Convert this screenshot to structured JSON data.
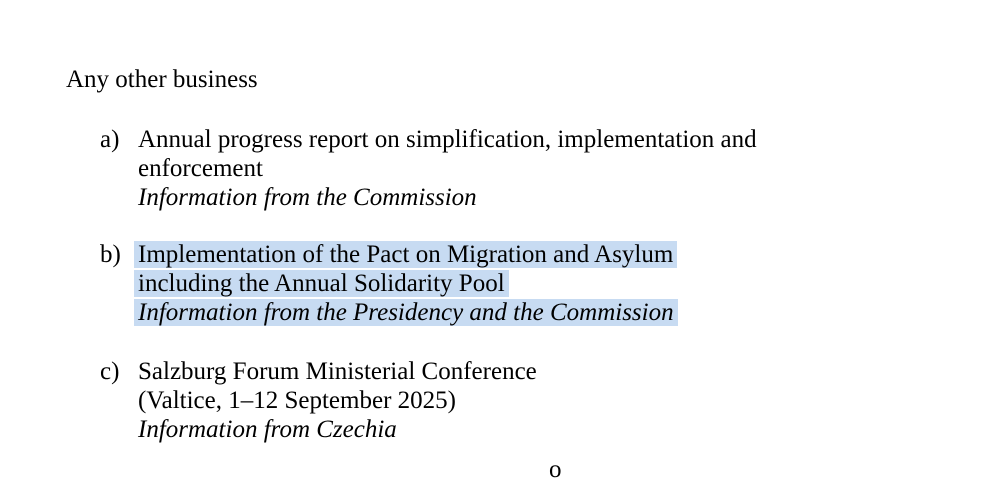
{
  "document": {
    "background_color": "#ffffff",
    "text_color": "#000000",
    "selection_color": "#c7dbf2",
    "heading": "Any other business",
    "items": [
      {
        "label": "a)",
        "lines": [
          "Annual progress report on simplification, implementation and",
          "enforcement"
        ],
        "note": "Information from the Commission",
        "selected": false
      },
      {
        "label": "b)",
        "lines": [
          "Implementation of the Pact on Migration and Asylum",
          "including the Annual Solidarity Pool"
        ],
        "note": "Information from the Presidency and the Commission",
        "selected": true
      },
      {
        "label": "c)",
        "lines": [
          "Salzburg Forum Ministerial Conference",
          "(Valtice, 1–12 September 2025)"
        ],
        "note": "Information from Czechia",
        "selected": false
      }
    ],
    "footer_text": "o"
  }
}
